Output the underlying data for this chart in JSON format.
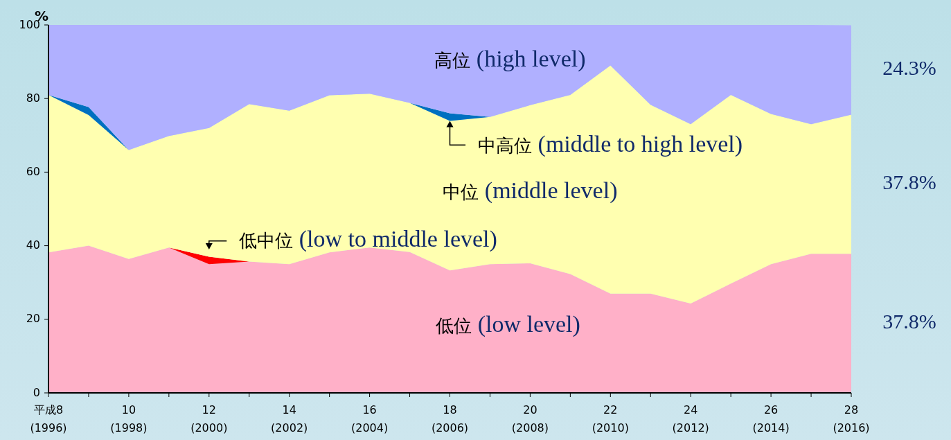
{
  "chart_data": {
    "type": "area",
    "stacked": true,
    "ylabel": "%",
    "ylim": [
      0,
      100
    ],
    "yticks": [
      0,
      20,
      40,
      60,
      80,
      100
    ],
    "grid": false,
    "categories": [
      "平成8\n(1996)",
      null,
      "10\n(1998)",
      null,
      "12\n(2000)",
      null,
      "14\n(2002)",
      null,
      "16\n(2004)",
      null,
      "18\n(2006)",
      null,
      "20\n(2008)",
      null,
      "22\n(2010)",
      null,
      "24\n(2012)",
      null,
      "26\n(2014)",
      null,
      "28\n(2016)"
    ],
    "series": [
      {
        "name": "低位 (low level)",
        "color": "#ffb0c8",
        "values": [
          38.2,
          40,
          36.4,
          39.5,
          35.0,
          35.7,
          35.0,
          38.2,
          39.5,
          38.3,
          33.3,
          35.0,
          35.2,
          32.3,
          27.0,
          27.0,
          24.3,
          29.7,
          35.0,
          37.8,
          37.8
        ],
        "value_labels": [
          null,
          null,
          null,
          null,
          null,
          null,
          null,
          null,
          null,
          null,
          null,
          null,
          null,
          null,
          null,
          null,
          null,
          null,
          null,
          null,
          "37.8%"
        ]
      },
      {
        "name": "低中位 (low to middle level)",
        "color": "#ff0000",
        "values": [
          0,
          0,
          0,
          0,
          2.0,
          0,
          0,
          0,
          0,
          0,
          0,
          0,
          0,
          0,
          0,
          0,
          0,
          0,
          0,
          0,
          0
        ]
      },
      {
        "name": "中位 (middle level)",
        "color": "#ffffb0",
        "values": [
          42.8,
          35.5,
          29.6,
          30.3,
          35.0,
          42.8,
          41.7,
          42.7,
          41.8,
          40.5,
          40.6,
          40.0,
          43.0,
          48.7,
          62.0,
          51.3,
          48.7,
          51.3,
          40.8,
          35.2,
          37.8
        ],
        "value_labels": [
          null,
          null,
          null,
          null,
          null,
          null,
          null,
          null,
          null,
          null,
          null,
          null,
          null,
          null,
          null,
          null,
          null,
          null,
          null,
          null,
          "37.8%"
        ]
      },
      {
        "name": "中高位 (middle to high level)",
        "color": "#0070c0",
        "values": [
          0,
          2.2,
          0,
          0,
          0,
          0,
          0,
          0,
          0,
          0,
          2.1,
          0,
          0,
          0,
          0,
          0,
          0,
          0,
          0,
          0,
          0
        ]
      },
      {
        "name": "高位 (high level)",
        "color": "#b0b0ff",
        "values": [
          19.0,
          22.3,
          34.0,
          30.2,
          28.0,
          21.5,
          23.3,
          19.1,
          18.7,
          21.2,
          24.0,
          25.0,
          21.8,
          19.0,
          11.0,
          21.7,
          27.0,
          19.0,
          24.2,
          27.0,
          24.3
        ],
        "value_labels": [
          null,
          null,
          null,
          null,
          null,
          null,
          null,
          null,
          null,
          null,
          null,
          null,
          null,
          null,
          null,
          null,
          null,
          null,
          null,
          null,
          "24.3%"
        ]
      }
    ]
  }
}
